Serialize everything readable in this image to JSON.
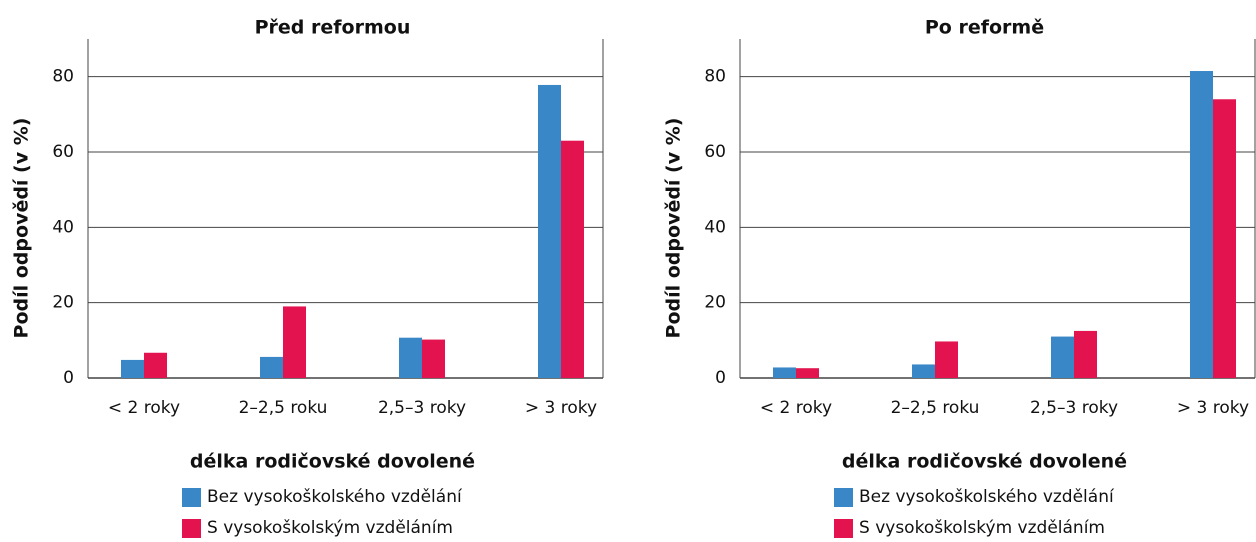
{
  "chart_data": [
    {
      "type": "bar",
      "title": "Před reformou",
      "ylabel": "Podíl odpovědí (v %)",
      "xlabel": "délka rodičovské dovolené",
      "categories": [
        "< 2 roky",
        "2–2,5 roku",
        "2,5–3 roky",
        "> 3 roky"
      ],
      "series": [
        {
          "name": "Bez vysokoškolského vzdělání",
          "color": "#3a87c8",
          "values": [
            4.8,
            5.6,
            10.7,
            77.8
          ]
        },
        {
          "name": "S vysokoškolským vzděláním",
          "color": "#e2134f",
          "values": [
            6.7,
            19,
            10.2,
            63
          ]
        }
      ],
      "ylim": [
        0,
        90
      ],
      "yticks": [
        0,
        20,
        40,
        60,
        80
      ],
      "grid": true
    },
    {
      "type": "bar",
      "title": "Po reformě",
      "ylabel": "Podíl odpovědí (v %)",
      "xlabel": "délka rodičovské dovolené",
      "categories": [
        "< 2 roky",
        "2–2,5 roku",
        "2,5–3 roky",
        "> 3 roky"
      ],
      "series": [
        {
          "name": "Bez vysokoškolského vzdělání",
          "color": "#3a87c8",
          "values": [
            2.8,
            3.6,
            11,
            81.5
          ]
        },
        {
          "name": "S vysokoškolským vzděláním",
          "color": "#e2134f",
          "values": [
            2.6,
            9.7,
            12.5,
            74
          ]
        }
      ],
      "ylim": [
        0,
        90
      ],
      "yticks": [
        0,
        20,
        40,
        60,
        80
      ],
      "grid": true
    }
  ]
}
